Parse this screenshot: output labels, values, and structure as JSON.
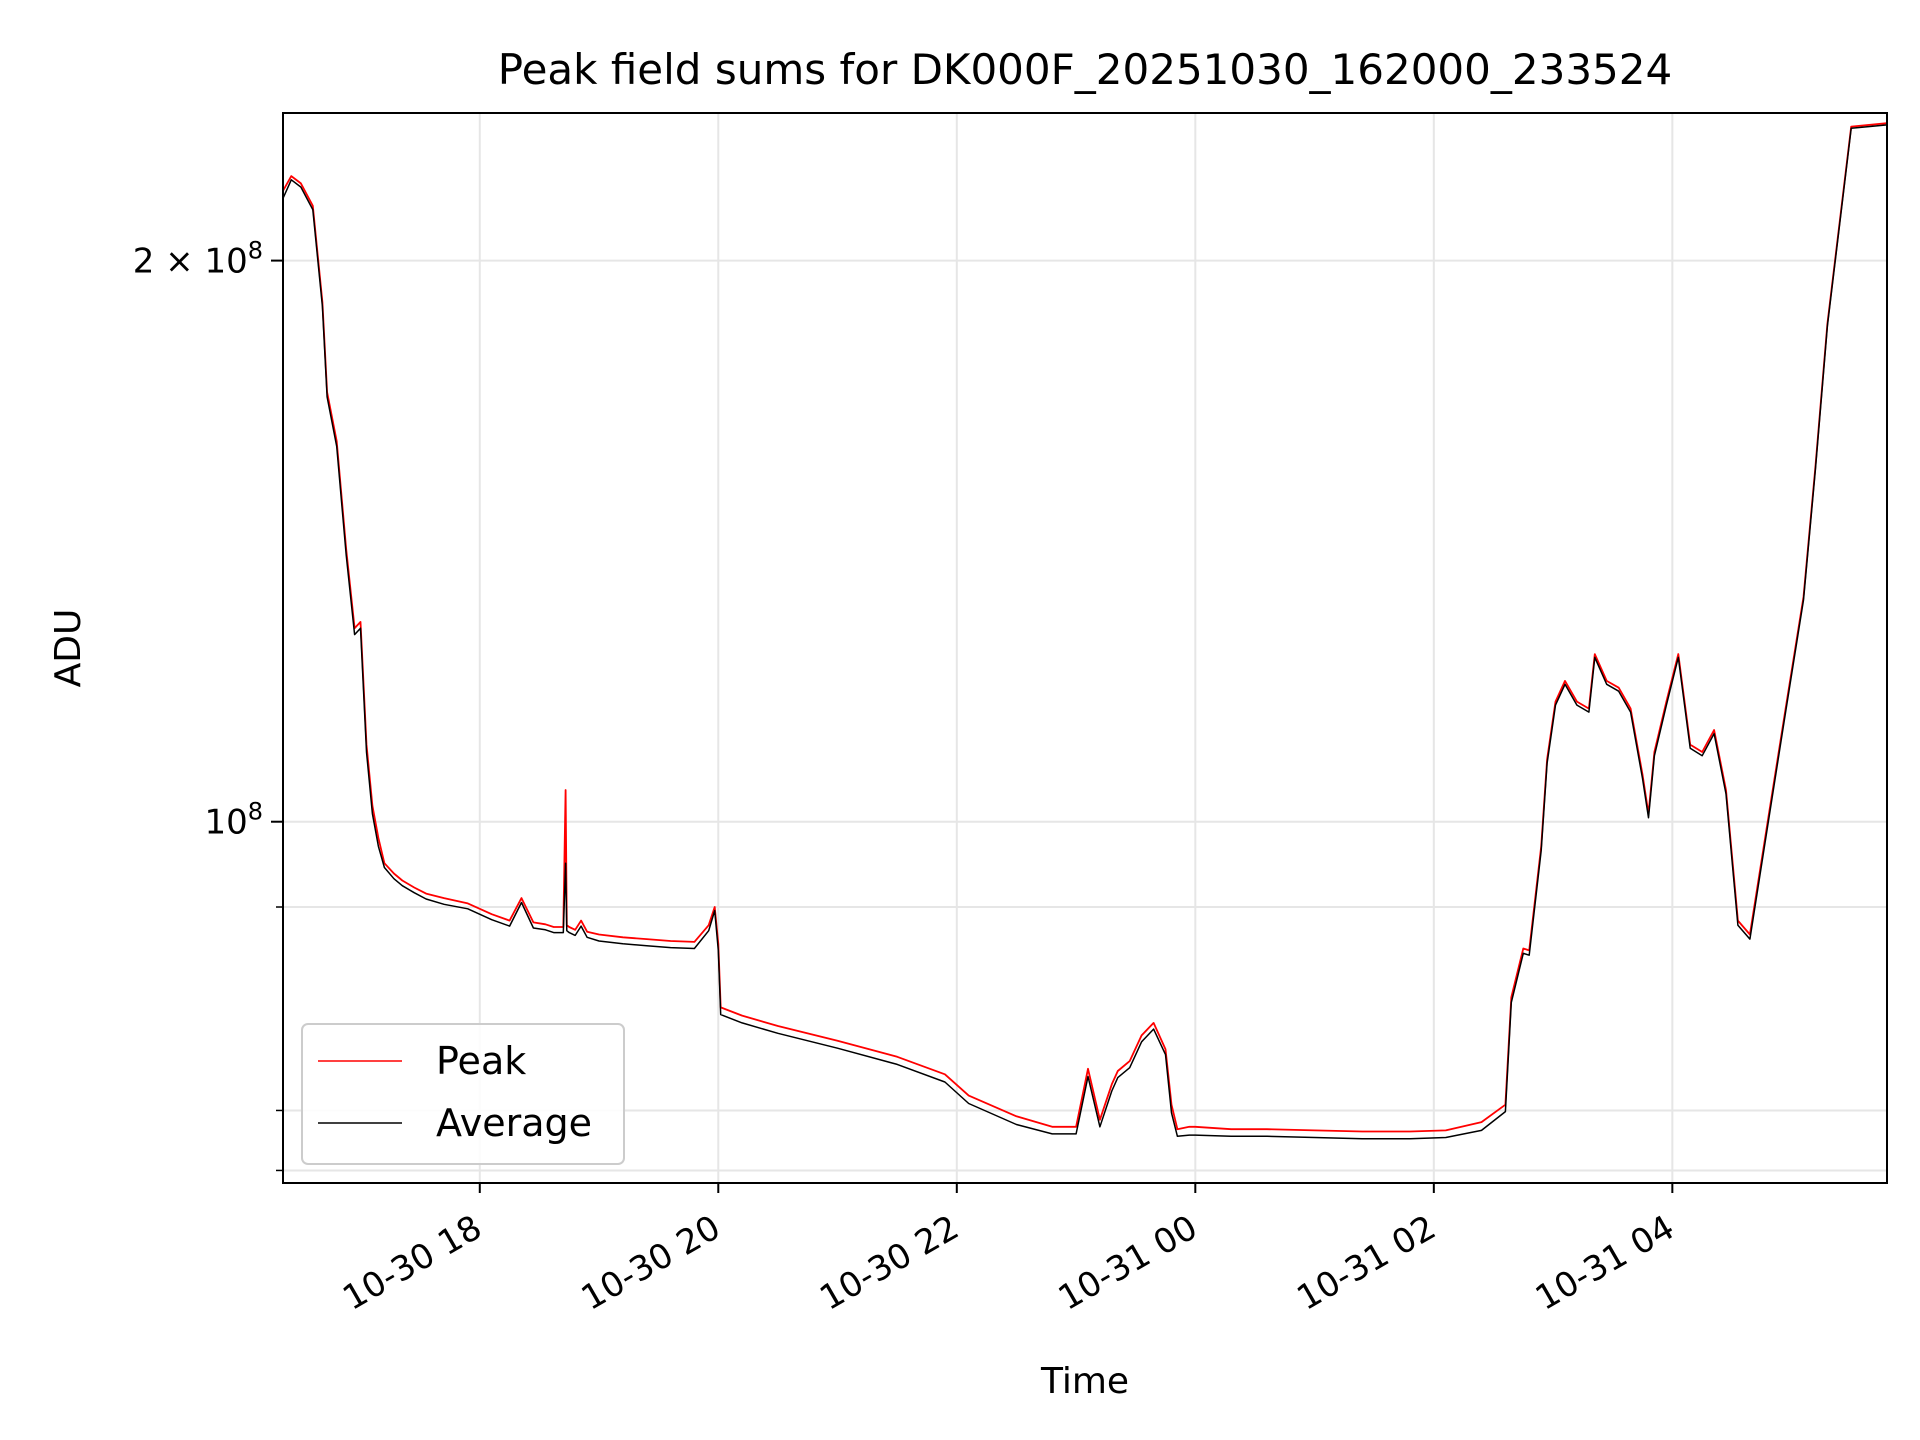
{
  "chart_data": {
    "type": "line",
    "title": "Peak field sums for DK000F_20251030_162000_233524",
    "xlabel": "Time",
    "ylabel": "ADU",
    "yscale": "log",
    "grid": true,
    "legend_position": "lower-left",
    "x_units": "hours since 2025-10-30 00:00",
    "xlim": [
      16.35,
      29.8
    ],
    "ylim": [
      64000000,
      240000000
    ],
    "x_ticks": [
      {
        "value": 18,
        "label": "10-30 18"
      },
      {
        "value": 20,
        "label": "10-30 20"
      },
      {
        "value": 22,
        "label": "10-30 22"
      },
      {
        "value": 24,
        "label": "10-31 00"
      },
      {
        "value": 26,
        "label": "10-31 02"
      },
      {
        "value": 28,
        "label": "10-31 04"
      }
    ],
    "y_ticks_major": [
      {
        "value": 100000000,
        "label_base": "10",
        "label_exp": "8",
        "label_coef": ""
      },
      {
        "value": 200000000,
        "label_base": "10",
        "label_exp": "8",
        "label_coef": "2 × "
      }
    ],
    "y_ticks_minor": [
      65000000,
      70000000,
      90000000
    ],
    "series": [
      {
        "name": "Peak",
        "color": "#ff0000",
        "x": [
          16.35,
          16.42,
          16.5,
          16.6,
          16.68,
          16.72,
          16.8,
          16.88,
          16.95,
          17.0,
          17.05,
          17.1,
          17.15,
          17.2,
          17.28,
          17.35,
          17.45,
          17.55,
          17.7,
          17.9,
          18.1,
          18.25,
          18.35,
          18.45,
          18.55,
          18.62,
          18.7,
          18.72,
          18.73,
          18.75,
          18.8,
          18.85,
          18.9,
          19.0,
          19.2,
          19.4,
          19.6,
          19.8,
          19.92,
          19.97,
          20.0,
          20.02,
          20.2,
          20.5,
          21.0,
          21.5,
          21.9,
          22.1,
          22.5,
          22.8,
          23.0,
          23.1,
          23.2,
          23.3,
          23.35,
          23.45,
          23.55,
          23.65,
          23.75,
          23.8,
          23.85,
          23.95,
          24.0,
          24.3,
          24.6,
          25.0,
          25.4,
          25.8,
          26.1,
          26.4,
          26.6,
          26.65,
          26.75,
          26.8,
          26.9,
          26.95,
          27.02,
          27.1,
          27.2,
          27.3,
          27.35,
          27.45,
          27.55,
          27.65,
          27.75,
          27.8,
          27.85,
          27.95,
          28.05,
          28.15,
          28.25,
          28.35,
          28.45,
          28.55,
          28.65,
          28.8,
          28.95,
          29.1,
          29.2,
          29.3,
          29.5,
          29.8
        ],
        "y": [
          218000000,
          222000000,
          220000000,
          214000000,
          190000000,
          170000000,
          160000000,
          140000000,
          127000000,
          128000000,
          110000000,
          102000000,
          98000000,
          95000000,
          93800000,
          93000000,
          92200000,
          91500000,
          91000000,
          90400000,
          89200000,
          88500000,
          91000000,
          88300000,
          88100000,
          87800000,
          87800000,
          104000000,
          88000000,
          87800000,
          87500000,
          88500000,
          87300000,
          87000000,
          86700000,
          86500000,
          86300000,
          86200000,
          88000000,
          90000000,
          86000000,
          79500000,
          78700000,
          77700000,
          76300000,
          74800000,
          73200000,
          71300000,
          69500000,
          68600000,
          68600000,
          73700000,
          69200000,
          72300000,
          73500000,
          74400000,
          76800000,
          78000000,
          75500000,
          70500000,
          68400000,
          68600000,
          68600000,
          68400000,
          68400000,
          68300000,
          68200000,
          68200000,
          68300000,
          69000000,
          70500000,
          80500000,
          85500000,
          85300000,
          97000000,
          108000000,
          116000000,
          119000000,
          116000000,
          115000000,
          123000000,
          119000000,
          118000000,
          115000000,
          106000000,
          101000000,
          109000000,
          116000000,
          123000000,
          110000000,
          109000000,
          112000000,
          104000000,
          88500000,
          87000000,
          100000000,
          115000000,
          132000000,
          155000000,
          185000000,
          236000000,
          237000000
        ]
      },
      {
        "name": "Average",
        "color": "#000000",
        "x": [
          16.35,
          16.42,
          16.5,
          16.6,
          16.68,
          16.72,
          16.8,
          16.88,
          16.95,
          17.0,
          17.05,
          17.1,
          17.15,
          17.2,
          17.28,
          17.35,
          17.45,
          17.55,
          17.7,
          17.9,
          18.1,
          18.25,
          18.35,
          18.45,
          18.55,
          18.62,
          18.7,
          18.72,
          18.73,
          18.75,
          18.8,
          18.85,
          18.9,
          19.0,
          19.2,
          19.4,
          19.6,
          19.8,
          19.92,
          19.97,
          20.0,
          20.02,
          20.2,
          20.5,
          21.0,
          21.5,
          21.9,
          22.1,
          22.5,
          22.8,
          23.0,
          23.1,
          23.2,
          23.3,
          23.35,
          23.45,
          23.55,
          23.65,
          23.75,
          23.8,
          23.85,
          23.95,
          24.0,
          24.3,
          24.6,
          25.0,
          25.4,
          25.8,
          26.1,
          26.4,
          26.6,
          26.65,
          26.75,
          26.8,
          26.9,
          26.95,
          27.02,
          27.1,
          27.2,
          27.3,
          27.35,
          27.45,
          27.55,
          27.65,
          27.75,
          27.8,
          27.85,
          27.95,
          28.05,
          28.15,
          28.25,
          28.35,
          28.45,
          28.55,
          28.65,
          28.8,
          28.95,
          29.1,
          29.2,
          29.3,
          29.5,
          29.8
        ],
        "y": [
          216000000,
          221000000,
          219000000,
          213000000,
          189000000,
          169000000,
          159000000,
          139000000,
          126000000,
          127000000,
          109000000,
          101000000,
          97000000,
          94500000,
          93200000,
          92400000,
          91600000,
          90900000,
          90300000,
          89800000,
          88600000,
          87900000,
          90500000,
          87700000,
          87500000,
          87200000,
          87200000,
          95000000,
          87400000,
          87200000,
          86900000,
          87900000,
          86700000,
          86300000,
          86000000,
          85800000,
          85600000,
          85500000,
          87400000,
          89600000,
          85300000,
          78800000,
          78000000,
          77000000,
          75600000,
          74100000,
          72500000,
          70600000,
          68800000,
          68000000,
          68000000,
          73000000,
          68600000,
          71700000,
          72900000,
          73800000,
          76200000,
          77400000,
          75000000,
          69800000,
          67800000,
          67900000,
          67900000,
          67800000,
          67800000,
          67700000,
          67600000,
          67600000,
          67700000,
          68300000,
          69900000,
          80000000,
          85000000,
          84800000,
          96500000,
          107500000,
          115500000,
          118500000,
          115500000,
          114500000,
          122500000,
          118500000,
          117500000,
          114500000,
          105500000,
          100500000,
          108500000,
          115500000,
          122500000,
          109500000,
          108500000,
          111500000,
          103500000,
          88000000,
          86500000,
          99500000,
          114500000,
          131500000,
          154500000,
          184500000,
          235500000,
          236500000
        ]
      }
    ]
  }
}
